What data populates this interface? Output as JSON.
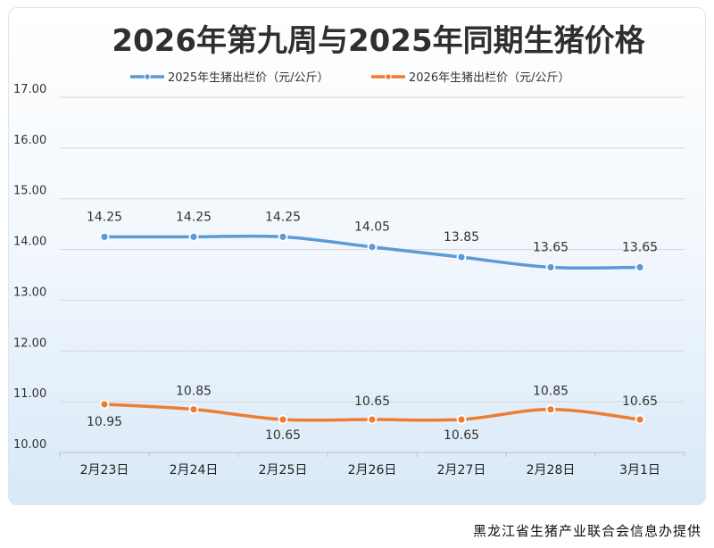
{
  "chart_data": {
    "type": "line",
    "title": "2026年第九周与2025年同期生猪价格",
    "categories": [
      "2月23日",
      "2月24日",
      "2月25日",
      "2月26日",
      "2月27日",
      "2月28日",
      "3月1日"
    ],
    "series": [
      {
        "name": "2025年生猪出栏价（元/公斤）",
        "values": [
          14.25,
          14.25,
          14.25,
          14.05,
          13.85,
          13.65,
          13.65
        ],
        "labels": [
          "14.25",
          "14.25",
          "14.25",
          "14.05",
          "13.85",
          "13.65",
          "13.65"
        ],
        "color": "#5b9bd5"
      },
      {
        "name": "2026年生猪出栏价（元/公斤）",
        "values": [
          10.95,
          10.85,
          10.65,
          10.65,
          10.65,
          10.85,
          10.65
        ],
        "labels": [
          "10.95",
          "10.85",
          "10.65",
          "10.65",
          "10.65",
          "10.85",
          "10.65"
        ],
        "color": "#ed7d31"
      }
    ],
    "y_ticks": [
      "10.00",
      "11.00",
      "12.00",
      "13.00",
      "14.00",
      "15.00",
      "16.00",
      "17.00"
    ],
    "ylim": [
      10,
      17
    ],
    "xlabel": "",
    "ylabel": "",
    "grid": true,
    "legend": "top-center"
  },
  "source": "黑龙江省生猪产业联合会信息办提供"
}
